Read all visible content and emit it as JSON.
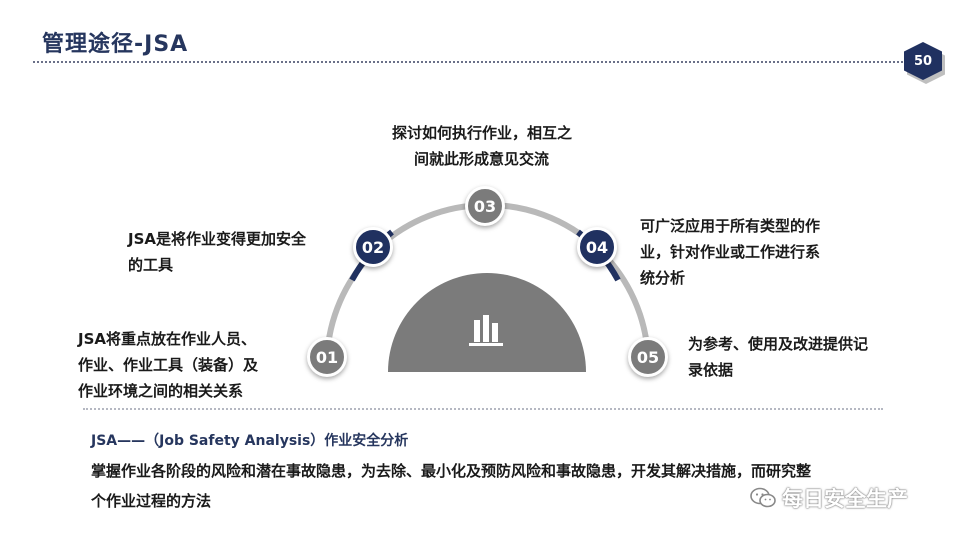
{
  "header": {
    "title": "管理途径-JSA",
    "page_number": "50"
  },
  "steps": [
    {
      "num": "01",
      "text_lines": [
        "JSA将重点放在作业人员、",
        "作业、作业工具（装备）及",
        "作业环境之间的相关关系"
      ]
    },
    {
      "num": "02",
      "text_lines": [
        "JSA是将作业变得更加安全",
        "的工具"
      ]
    },
    {
      "num": "03",
      "text_lines": [
        "探讨如何执行作业，相互之",
        "间就此形成意见交流"
      ]
    },
    {
      "num": "04",
      "text_lines": [
        "可广泛应用于所有类型的作",
        "业，针对作业或工作进行系",
        "统分析"
      ]
    },
    {
      "num": "05",
      "text_lines": [
        "为参考、使用及改进提供记",
        "录依据"
      ]
    }
  ],
  "center_icon": "bar-chart-icon",
  "analysis": {
    "title": "JSA——（Job Safety Analysis）作业安全分析",
    "body_lines": [
      "掌握作业各阶段的风险和潜在事故隐患，为去除、最小化及预防风险和事故隐患，开发其解决措施，而研究整",
      "个作业过程的方法"
    ]
  },
  "watermark": {
    "icon": "wechat-icon",
    "text": "每日安全生产"
  },
  "colors": {
    "navy": "#203160",
    "gray": "#7b7b7b",
    "arc_gray": "#b9b9b9"
  }
}
